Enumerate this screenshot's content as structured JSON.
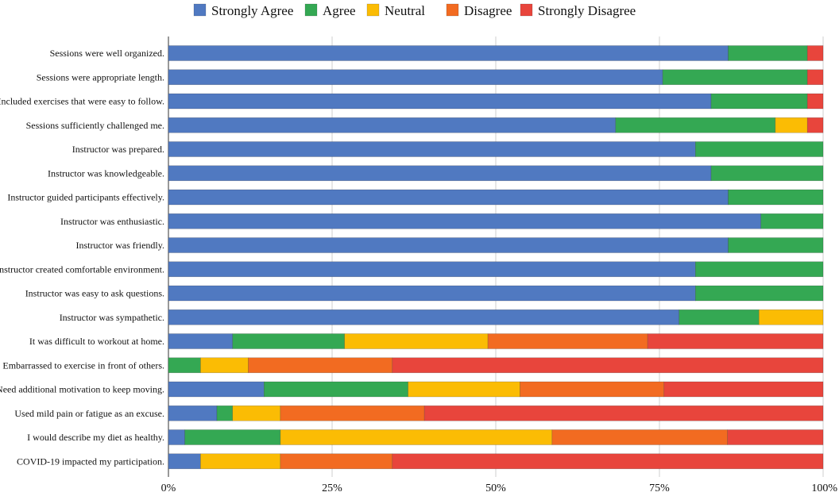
{
  "chart_data": {
    "type": "bar",
    "orientation": "horizontal",
    "stacked": true,
    "percent": true,
    "legend_position": "top",
    "grid": true,
    "xlim": [
      0,
      100
    ],
    "xticks": [
      "0%",
      "25%",
      "50%",
      "75%",
      "100%"
    ],
    "xtick_values": [
      0,
      25,
      50,
      75,
      100
    ],
    "categories": [
      "Sessions were well organized.",
      "Sessions were appropriate length.",
      "Included exercises that were easy to follow.",
      "Sessions sufficiently challenged me.",
      "Instructor was prepared.",
      "Instructor was knowledgeable.",
      "Instructor guided participants effectively.",
      "Instructor was enthusiastic.",
      "Instructor was friendly.",
      "Instructor created comfortable environment.",
      "Instructor was easy to ask questions.",
      "Instructor was sympathetic.",
      "It was difficult to workout at home.",
      "Embarrassed to exercise in front of others.",
      "Need additional motivation to keep moving.",
      "Used mild pain or fatigue as an excuse.",
      "I would describe my diet as healthy.",
      "COVID-19 impacted my participation."
    ],
    "series": [
      {
        "name": "Strongly Agree",
        "color": "#5079c1",
        "values": [
          85.5,
          75.5,
          82.9,
          68.3,
          80.5,
          82.9,
          85.5,
          90.5,
          85.5,
          80.5,
          80.5,
          78.0,
          9.8,
          0,
          14.6,
          7.4,
          2.5,
          4.9
        ]
      },
      {
        "name": "Agree",
        "color": "#34a853",
        "values": [
          12.1,
          22.1,
          14.7,
          24.4,
          19.5,
          17.1,
          14.5,
          9.5,
          14.5,
          19.5,
          19.5,
          12.2,
          17.1,
          4.9,
          22.0,
          2.4,
          14.6,
          0
        ]
      },
      {
        "name": "Neutral",
        "color": "#fbbc04",
        "values": [
          0,
          0,
          0,
          4.9,
          0,
          0,
          0,
          0,
          0,
          0,
          0,
          9.8,
          21.9,
          7.3,
          17.1,
          7.3,
          41.5,
          12.2
        ]
      },
      {
        "name": "Disagree",
        "color": "#f26b21",
        "values": [
          0,
          0,
          0,
          0,
          0,
          0,
          0,
          0,
          0,
          0,
          0,
          0,
          24.4,
          22.0,
          22.0,
          22.0,
          26.8,
          17.1
        ]
      },
      {
        "name": "Strongly Disagree",
        "color": "#e8453c",
        "values": [
          2.4,
          2.4,
          2.4,
          2.4,
          0,
          0,
          0,
          0,
          0,
          0,
          0,
          0,
          26.8,
          65.8,
          24.3,
          60.9,
          14.6,
          65.8
        ]
      }
    ]
  }
}
